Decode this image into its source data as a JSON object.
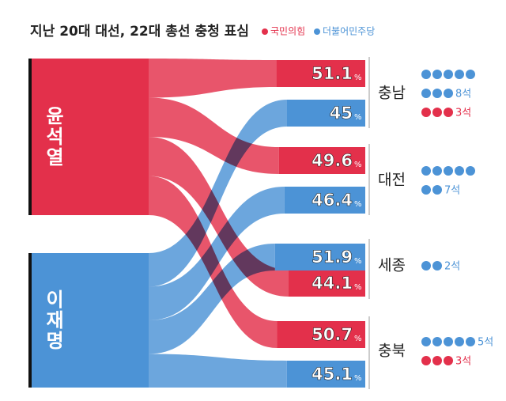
{
  "chart_data": {
    "type": "flow",
    "title": "지난 20대 대선, 22대 총선 충청 표심",
    "series": [
      {
        "name": "국민의힘",
        "candidate": "윤석열",
        "color": "#e3304b",
        "values": [
          51.1,
          49.6,
          44.1,
          50.7
        ],
        "seats": [
          3,
          null,
          null,
          3
        ],
        "seat_labels": [
          "3석",
          null,
          null,
          "3석"
        ]
      },
      {
        "name": "더불어민주당",
        "candidate": "이재명",
        "color": "#4c93d6",
        "values": [
          45.0,
          46.4,
          51.9,
          45.1
        ],
        "seats": [
          8,
          7,
          2,
          5
        ],
        "seat_labels": [
          "8석",
          "7석",
          "2석",
          "5석"
        ]
      }
    ],
    "categories": [
      "충남",
      "대전",
      "세종",
      "충북"
    ],
    "unit": "%"
  }
}
